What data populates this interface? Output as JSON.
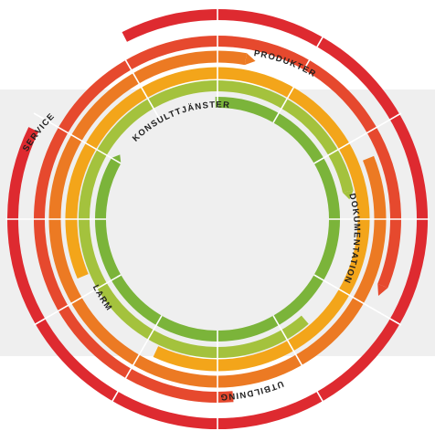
{
  "diagram": {
    "colors": {
      "red": "#de2a30",
      "red_orange": "#e6492e",
      "orange": "#ec7a23",
      "amber": "#f3a51a",
      "lime": "#a4c23d",
      "green": "#7bb43a",
      "background_band": "#efefef"
    },
    "rings": [
      {
        "id": "service",
        "color_key": "red",
        "label": "SERVICE"
      },
      {
        "id": "utbildning",
        "color_key": "red_orange",
        "label": "UTBILDNING"
      },
      {
        "id": "produkter",
        "color_key": "orange",
        "label": "PRODUKTER"
      },
      {
        "id": "larm",
        "color_key": "amber",
        "label": "LARM"
      },
      {
        "id": "dokumentation",
        "color_key": "lime",
        "label": "DOKUMENTATION"
      },
      {
        "id": "konsulttjanster",
        "color_key": "green",
        "label": "KONSULTTJÄNSTER"
      }
    ]
  }
}
